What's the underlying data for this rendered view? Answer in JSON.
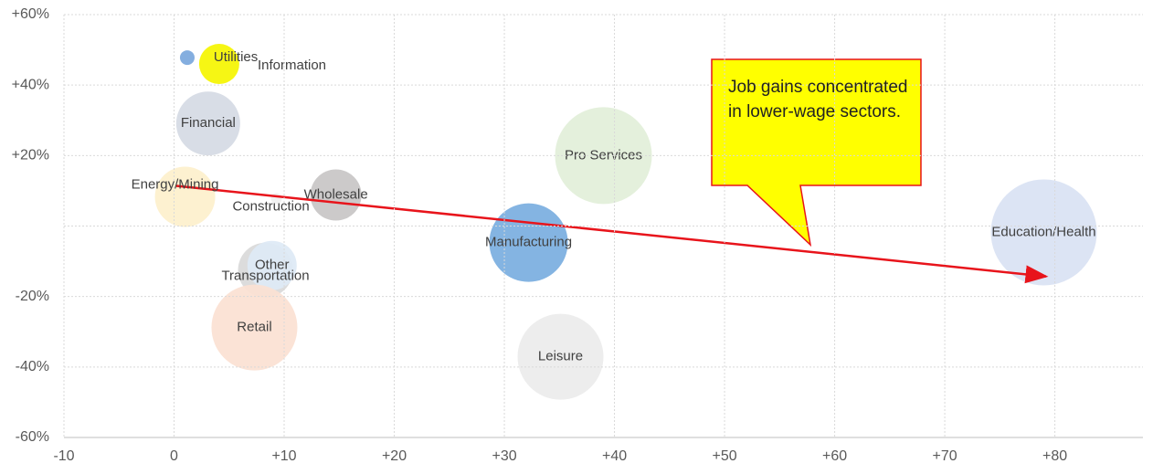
{
  "chart_data": {
    "type": "bubble",
    "categories": [
      "Information",
      "Utilities",
      "Financial",
      "Energy/Mining",
      "Construction",
      "Wholesale",
      "Transportation",
      "Other",
      "Retail",
      "Manufacturing",
      "Leisure",
      "Pro Services",
      "Education/Health"
    ],
    "x": [
      1.2,
      4.1,
      3.1,
      1.0,
      9.3,
      14.7,
      8.3,
      8.9,
      7.3,
      32.2,
      35.1,
      39.0,
      79.0
    ],
    "y": [
      47.8,
      46.0,
      29.1,
      8.3,
      7.8,
      8.8,
      -12.5,
      -11.2,
      -28.8,
      -4.7,
      -37.1,
      20.0,
      -1.8
    ],
    "sizes": [
      8,
      22,
      35,
      33,
      6,
      28,
      30,
      27,
      47,
      43,
      47,
      53,
      58
    ],
    "colors": [
      "#7aa7dc",
      "#f5f500",
      "#d5dae4",
      "#fdf0cc",
      "#f0f0f0",
      "#c8c6c6",
      "#d9d9d9",
      "#dde9f5",
      "#fbe1d3",
      "#7aaee0",
      "#ececec",
      "#e2efd9",
      "#d9e2f3"
    ],
    "xlim": [
      -10,
      88
    ],
    "ylim": [
      -60,
      60
    ],
    "xticks": [
      -10,
      0,
      {
        "value": 10,
        "label": "+10"
      },
      {
        "value": 20,
        "label": "+20"
      },
      {
        "value": 30,
        "label": "+30"
      },
      {
        "value": 40,
        "label": "+40"
      },
      {
        "value": 50,
        "label": "+50"
      },
      {
        "value": 60,
        "label": "+60"
      },
      {
        "value": 70,
        "label": "+70"
      },
      {
        "value": 80,
        "label": "+80"
      }
    ],
    "yticks": [
      {
        "value": -60,
        "label": "-60%"
      },
      {
        "value": -40,
        "label": "-40%"
      },
      {
        "value": -20,
        "label": "-20%"
      },
      {
        "value": 0,
        "label": null
      },
      {
        "value": 20,
        "label": "+20%"
      },
      {
        "value": 40,
        "label": "+40%"
      },
      {
        "value": 60,
        "label": "+60%"
      }
    ],
    "grid": true,
    "trend_line": {
      "x": [
        0.2,
        79.2
      ],
      "y": [
        11.4,
        -14.3
      ],
      "color": "#e8141b"
    },
    "annotation": "Job gains concentrated in lower-wage sectors."
  }
}
